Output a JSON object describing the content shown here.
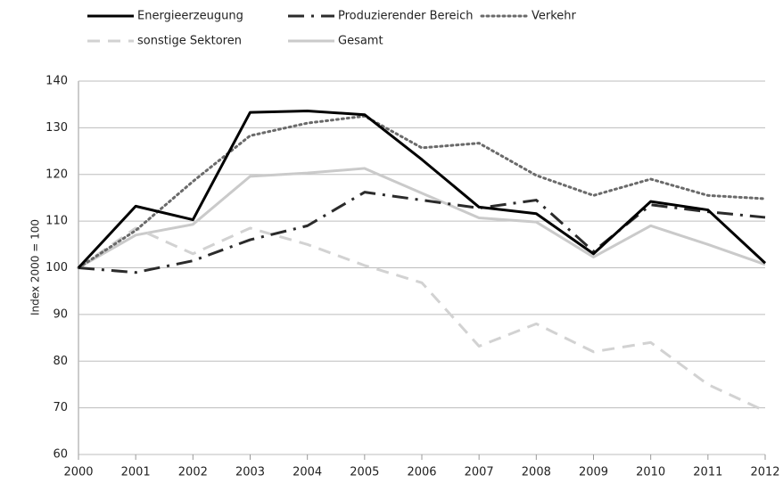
{
  "chart_data": {
    "type": "line",
    "x": [
      2000,
      2001,
      2002,
      2003,
      2004,
      2005,
      2006,
      2007,
      2008,
      2009,
      2010,
      2011,
      2012
    ],
    "xlim": [
      2000,
      2012
    ],
    "xticks": [
      2000,
      2001,
      2002,
      2003,
      2004,
      2005,
      2006,
      2007,
      2008,
      2009,
      2010,
      2011,
      2012
    ],
    "ylim": [
      60,
      140
    ],
    "yticks": [
      60,
      70,
      80,
      90,
      100,
      110,
      120,
      130,
      140
    ],
    "y_label": "Index 2000 = 100",
    "grid": true,
    "legend": "top",
    "series": [
      {
        "name": "Energieerzeugung",
        "color": "#000000",
        "style": "solid",
        "values": [
          100,
          113.2,
          110.3,
          133.3,
          133.6,
          132.8,
          123.2,
          113,
          111.6,
          103,
          114.2,
          112.4,
          101
        ]
      },
      {
        "name": "Produzierender Bereich",
        "color": "#2b2b2b",
        "style": "dashdot",
        "values": [
          100,
          99,
          101.5,
          106,
          109,
          116.2,
          114.5,
          112.8,
          114.5,
          103.5,
          113.5,
          112,
          110.8
        ]
      },
      {
        "name": "Verkehr",
        "color": "#6a6a6a",
        "style": "dotted",
        "values": [
          100,
          108,
          118.5,
          128.3,
          131,
          132.5,
          125.7,
          126.7,
          119.8,
          115.5,
          119,
          115.5,
          114.8
        ]
      },
      {
        "name": "sonstige Sektoren",
        "color": "#d2d2d2",
        "style": "dashed",
        "values": [
          100,
          108.5,
          103,
          108.5,
          105,
          100.5,
          96.8,
          83.2,
          88,
          82,
          84,
          75,
          69.3
        ]
      },
      {
        "name": "Gesamt",
        "color": "#cacaca",
        "style": "solid",
        "values": [
          100,
          107,
          109.3,
          119.6,
          120.3,
          121.3,
          116,
          110.7,
          109.8,
          102.3,
          109,
          105,
          100.7
        ]
      }
    ]
  }
}
